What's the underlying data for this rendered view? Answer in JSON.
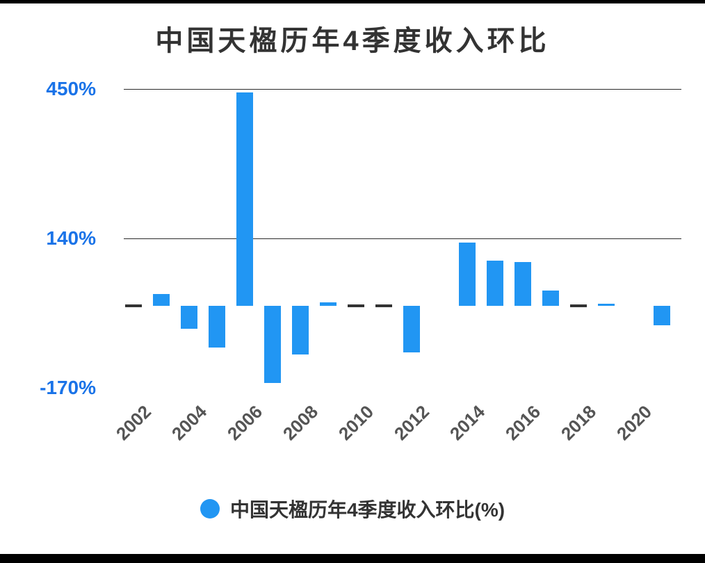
{
  "chart_data": {
    "type": "bar",
    "title": "中国天楹历年4季度收入环比",
    "legend": "中国天楹历年4季度收入环比(%)",
    "years": [
      "2002",
      "2003",
      "2004",
      "2005",
      "2006",
      "2007",
      "2008",
      "2009",
      "2010",
      "2011",
      "2012",
      "2013",
      "2014",
      "2015",
      "2016",
      "2017",
      "2018",
      "2019",
      "2020",
      "2021"
    ],
    "values": [
      0,
      25,
      -48,
      -86,
      443,
      -160,
      -101,
      7,
      0,
      0,
      -96,
      null,
      131,
      94,
      91,
      32,
      0,
      4,
      null,
      -40
    ],
    "y_ticks": [
      {
        "label": "450%",
        "value": 450,
        "line": true
      },
      {
        "label": "140%",
        "value": 140,
        "line": true
      },
      {
        "label": "-170%",
        "value": -170,
        "line": false
      }
    ],
    "x_tick_labels": [
      "2002",
      "2004",
      "2006",
      "2008",
      "2010",
      "2012",
      "2014",
      "2016",
      "2018",
      "2020"
    ],
    "ylim": [
      -250,
      460
    ],
    "grid": "horizontal-only",
    "legend_position": "bottom",
    "bar_color": "#2196f3",
    "axis_label_color": "#1a73e8",
    "zero_dash_color": "#333333"
  }
}
